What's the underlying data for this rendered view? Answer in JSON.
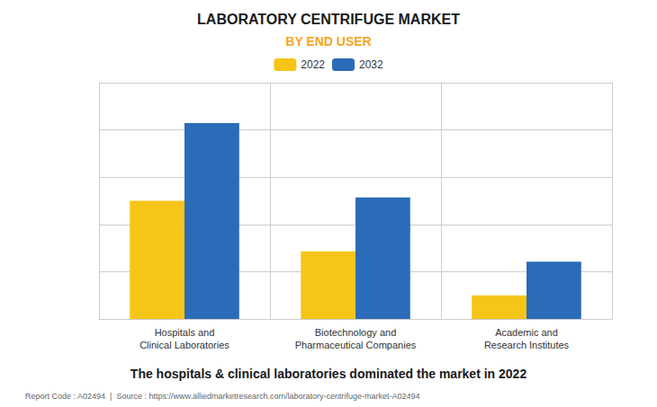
{
  "chart_data": {
    "type": "bar",
    "title": "LABORATORY CENTRIFUGE MARKET",
    "subtitle": "BY END USER",
    "categories": [
      "Hospitals and\nClinical Laboratories",
      "Biotechnology and\nPharmaceutical Companies",
      "Academic and\nResearch Institutes"
    ],
    "series": [
      {
        "name": "2022",
        "color": "#F5C518",
        "values": [
          3.5,
          2.0,
          0.7
        ]
      },
      {
        "name": "2032",
        "color": "#2B6CB8",
        "values": [
          5.8,
          3.6,
          1.7
        ]
      }
    ],
    "ylim": [
      0,
      7.0
    ],
    "yticks": [
      0,
      1.4,
      2.8,
      4.2,
      5.6,
      7.0
    ],
    "grid": true,
    "tick_labels": "x",
    "legend": "top",
    "annotations": [
      "The hospitals & clinical laboratories dominated the market in 2022",
      "Report Code : A02494  |  Source : https://www.alliedmarketresearch.com/laboratory-centrifuge-market-A02494"
    ]
  }
}
